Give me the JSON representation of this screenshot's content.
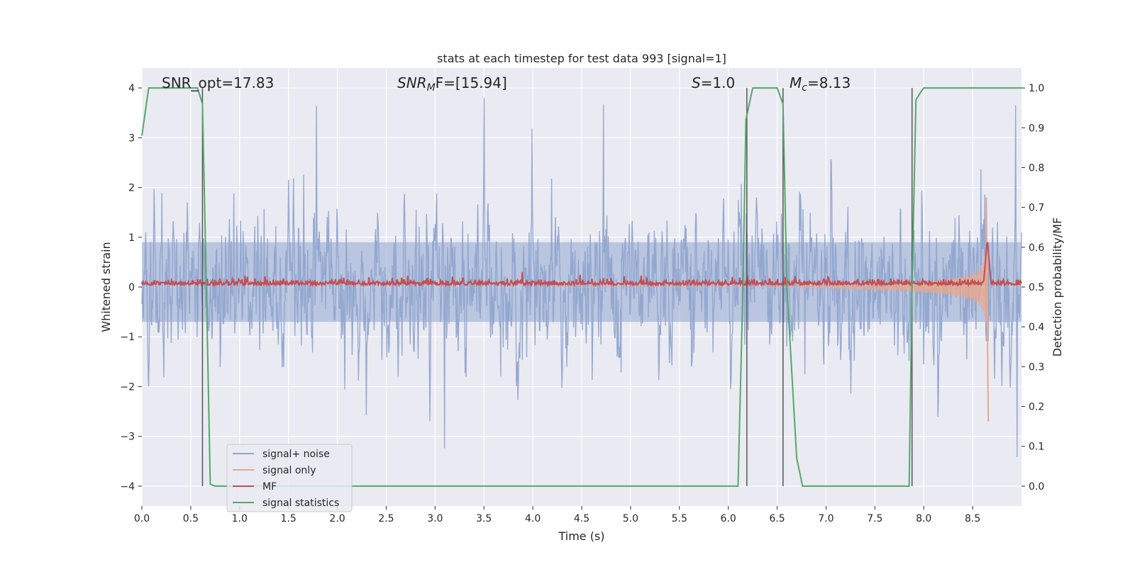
{
  "chart_data": {
    "type": "line",
    "title": "stats at each timestep for test data 993 [signal=1]",
    "xlabel": "Time (s)",
    "ylabel_left": "Whitened strain",
    "ylabel_right": "Detection probability/MF",
    "xlim": [
      0,
      9.0
    ],
    "ylim_left": [
      -4.4,
      4.4
    ],
    "ylim_right": [
      -0.05,
      1.05
    ],
    "x_ticks": [
      "0.0",
      "0.5",
      "1.0",
      "1.5",
      "2.0",
      "2.5",
      "3.0",
      "3.5",
      "4.0",
      "4.5",
      "5.0",
      "5.5",
      "6.0",
      "6.5",
      "7.0",
      "7.5",
      "8.0",
      "8.5"
    ],
    "y_ticks_left": [
      "−4",
      "−3",
      "−2",
      "−1",
      "0",
      "1",
      "2",
      "3",
      "4"
    ],
    "y_ticks_right": [
      "0.0",
      "0.1",
      "0.2",
      "0.3",
      "0.4",
      "0.5",
      "0.6",
      "0.7",
      "0.8",
      "0.9",
      "1.0"
    ],
    "grid": true,
    "legend_position": "lower-left",
    "annotations": {
      "snr_opt": "SNR_opt=17.83",
      "snr_mf_main": "SNR",
      "snr_mf_sub": "M",
      "snr_mf_rest": "F=[15.94]",
      "s_value_italic": "S",
      "s_value_rest": "=1.0",
      "mc_main": "M",
      "mc_sub": "c",
      "mc_rest": "=8.13"
    },
    "vertical_lines_x": [
      0.62,
      6.19,
      6.56,
      7.88
    ],
    "series": [
      {
        "name": "signal+ noise",
        "color": "#91a6cf",
        "axis": "left",
        "noise_amplitude_sigma": 1.0,
        "x_range": [
          0,
          9.0
        ]
      },
      {
        "name": "signal only",
        "color": "#e8a88c",
        "axis": "left",
        "chirp_start_x": 5.0,
        "merger_x": 8.65,
        "peak_y": 1.8,
        "min_y": -2.7
      },
      {
        "name": "MF",
        "color": "#c44e52",
        "axis": "right",
        "baseline": 0.505,
        "peak_x": 8.65,
        "peak_value": 0.62
      },
      {
        "name": "signal statistics",
        "color": "#55a868",
        "axis": "right",
        "x": [
          0.0,
          0.07,
          0.1,
          0.3,
          0.5,
          0.57,
          0.62,
          0.66,
          0.7,
          0.75,
          1.0,
          3.0,
          5.0,
          6.1,
          6.15,
          6.18,
          6.25,
          6.3,
          6.5,
          6.56,
          6.6,
          6.7,
          6.76,
          7.0,
          7.5,
          7.85,
          7.88,
          7.92,
          7.97,
          8.0,
          8.5,
          9.0
        ],
        "y": [
          0.88,
          1.0,
          1.0,
          1.0,
          1.0,
          1.0,
          0.96,
          0.5,
          0.005,
          0.0,
          0.0,
          0.0,
          0.0,
          0.0,
          0.5,
          0.92,
          1.0,
          1.0,
          1.0,
          0.96,
          0.5,
          0.07,
          0.0,
          0.0,
          0.0,
          0.0,
          0.5,
          0.97,
          0.99,
          1.0,
          1.0,
          1.0
        ]
      }
    ]
  }
}
